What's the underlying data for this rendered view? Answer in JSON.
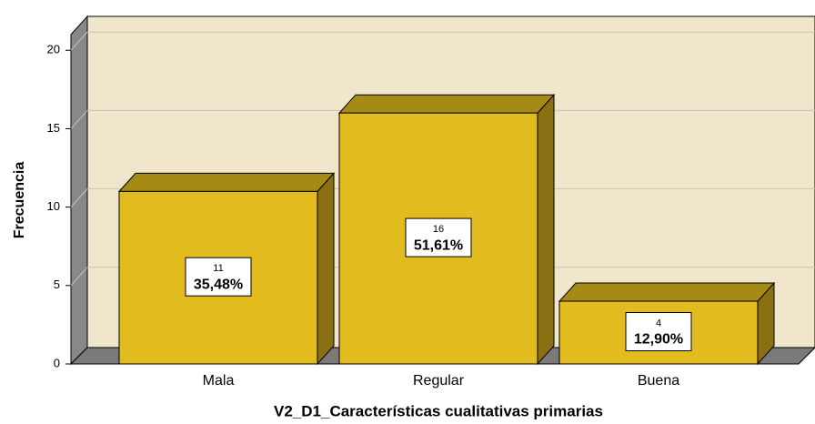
{
  "chart_data": {
    "type": "bar3d",
    "categories": [
      "Mala",
      "Regular",
      "Buena"
    ],
    "values": [
      11,
      16,
      4
    ],
    "percentages": [
      35.48,
      51.61,
      12.9
    ],
    "percentage_labels": [
      "35,48%",
      "51,61%",
      "12,90%"
    ],
    "color": "#e2bb1f",
    "ylim": [
      0,
      21
    ],
    "yticks": [
      0,
      5,
      10,
      15,
      20
    ],
    "grid": true,
    "y_label": "Frecuencia",
    "x_label": "V2_D1_Características cualitativas primarias"
  }
}
